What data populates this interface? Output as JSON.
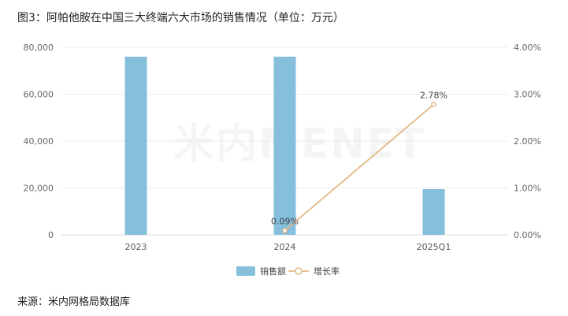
{
  "figure": {
    "title": "图3：阿帕他胺在中国三大终端六大市场的销售情况（单位：万元）",
    "source": "来源：米内网格局数据库",
    "watermark": "米内MENET"
  },
  "chart_data": {
    "type": "bar",
    "categories": [
      "2023",
      "2024",
      "2025Q1"
    ],
    "series": [
      {
        "name": "销售额",
        "type": "bar",
        "axis": "left",
        "color": "#86bfdc",
        "values": [
          76000,
          76000,
          19500
        ]
      },
      {
        "name": "增长率",
        "type": "line",
        "axis": "right",
        "color": "#e3b884",
        "values": [
          null,
          0.09,
          2.78
        ],
        "labels": [
          null,
          "0.09%",
          "2.78%"
        ]
      }
    ],
    "y_left": {
      "min": 0,
      "max": 80000,
      "ticks": [
        "0",
        "20,000",
        "40,000",
        "60,000",
        "80,000"
      ]
    },
    "y_right": {
      "min": 0,
      "max": 4,
      "ticks": [
        "0.00%",
        "1.00%",
        "2.00%",
        "3.00%",
        "4.00%"
      ]
    },
    "grid": true,
    "legend_position": "bottom"
  }
}
